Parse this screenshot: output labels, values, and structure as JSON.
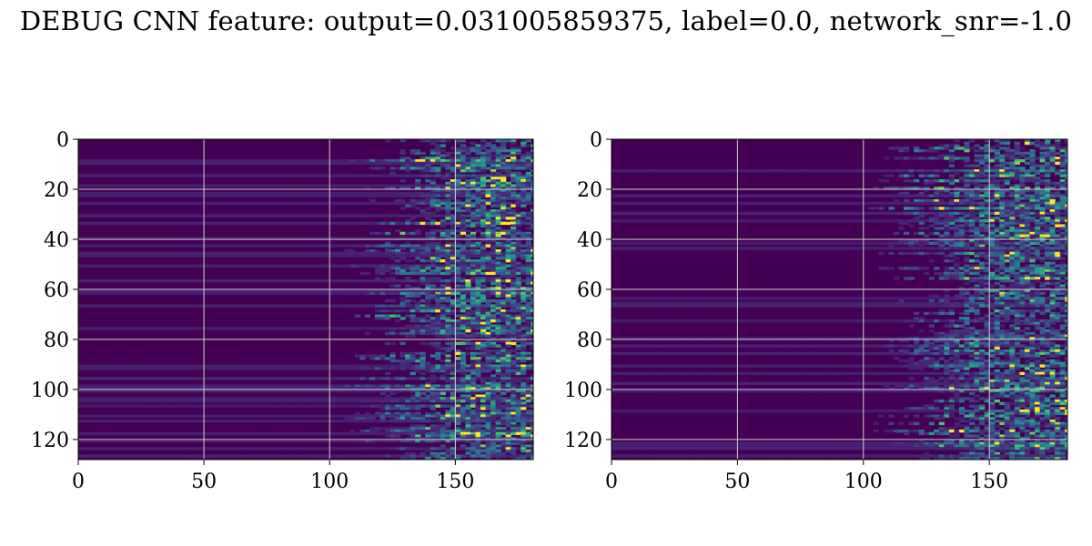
{
  "figure": {
    "title": "DEBUG CNN feature: output=0.031005859375, label=0.0, network_snr=-1.0"
  },
  "chart_data": [
    {
      "type": "heatmap",
      "title": "",
      "xlabel": "",
      "ylabel": "",
      "xlim": [
        0,
        181
      ],
      "ylim": [
        128,
        0
      ],
      "x_ticks": [
        0,
        50,
        100,
        150
      ],
      "y_ticks": [
        0,
        20,
        40,
        60,
        80,
        100,
        120
      ],
      "x_tick_labels": [
        "0",
        "50",
        "100",
        "150"
      ],
      "y_tick_labels": [
        "0",
        "20",
        "40",
        "60",
        "80",
        "100",
        "120"
      ],
      "grid": true,
      "colormap": "viridis",
      "rows": 128,
      "cols": 181,
      "onset_column_range": [
        115,
        150
      ],
      "description_values": "dark purple rows for columns 0-115, bright teal/green/yellow patches for columns ~120-181"
    },
    {
      "type": "heatmap",
      "title": "",
      "xlabel": "",
      "ylabel": "",
      "xlim": [
        0,
        181
      ],
      "ylim": [
        128,
        0
      ],
      "x_ticks": [
        0,
        50,
        100,
        150
      ],
      "y_ticks": [
        0,
        20,
        40,
        60,
        80,
        100,
        120
      ],
      "x_tick_labels": [
        "0",
        "50",
        "100",
        "150"
      ],
      "y_tick_labels": [
        "0",
        "20",
        "40",
        "60",
        "80",
        "100",
        "120"
      ],
      "grid": true,
      "colormap": "viridis",
      "rows": 128,
      "cols": 181,
      "onset_column_range": [
        110,
        150
      ],
      "description_values": "dark purple rows for columns 0-110, bright teal/green/yellow speckles for columns ~120-181"
    }
  ],
  "colors": {
    "viridis_low": "#440154",
    "viridis_mid": "#21918c",
    "viridis_high": "#fde725",
    "grid": "#d0d0d0"
  }
}
